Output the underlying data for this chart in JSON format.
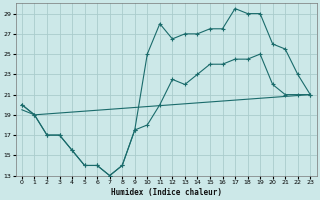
{
  "xlabel": "Humidex (Indice chaleur)",
  "bg_color": "#cce8e8",
  "grid_color": "#aacccc",
  "line_color": "#1a6b6b",
  "xlim": [
    -0.5,
    23.5
  ],
  "ylim": [
    13,
    30
  ],
  "xticks": [
    0,
    1,
    2,
    3,
    4,
    5,
    6,
    7,
    8,
    9,
    10,
    11,
    12,
    13,
    14,
    15,
    16,
    17,
    18,
    19,
    20,
    21,
    22,
    23
  ],
  "yticks": [
    13,
    15,
    17,
    19,
    21,
    23,
    25,
    27,
    29
  ],
  "line1_x": [
    0,
    1,
    2,
    3,
    4,
    5,
    6,
    7,
    8,
    9,
    10,
    11,
    12,
    13,
    14,
    15,
    16,
    17,
    18,
    19,
    20,
    21,
    22,
    23
  ],
  "line1_y": [
    20,
    19,
    17,
    17,
    15.5,
    14,
    14,
    13,
    14,
    17.5,
    18,
    20,
    22.5,
    22,
    23,
    24,
    24,
    24.5,
    24.5,
    25,
    22,
    21,
    21,
    21
  ],
  "line2_x": [
    0,
    1,
    2,
    3,
    4,
    5,
    6,
    7,
    8,
    9,
    10,
    11,
    12,
    13,
    14,
    15,
    16,
    17,
    18,
    19,
    20,
    21,
    22,
    23
  ],
  "line2_y": [
    20,
    19,
    17,
    17,
    15.5,
    14,
    14,
    13,
    14,
    17.5,
    25,
    28,
    26.5,
    27,
    27,
    27.5,
    27.5,
    29.5,
    29,
    29,
    26,
    25.5,
    23,
    21
  ],
  "line3_x": [
    0,
    1,
    23
  ],
  "line3_y": [
    19.5,
    19,
    21
  ]
}
